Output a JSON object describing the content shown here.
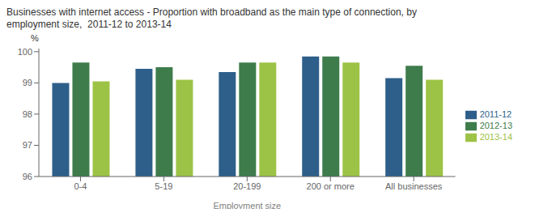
{
  "chart_data": {
    "type": "bar",
    "title": "Businesses with internet access - Proportion with broadband as the main type of connection, by",
    "subtitle": "employment size,  2011-12 to 2013-14",
    "xlabel": "Employment size",
    "ylabel": "%",
    "categories": [
      "0-4",
      "5-19",
      "20-199",
      "200 or more",
      "All businesses"
    ],
    "series": [
      {
        "name": "2011-12",
        "color": "#2E5F8A",
        "values": [
          99.0,
          99.45,
          99.35,
          99.85,
          99.15
        ]
      },
      {
        "name": "2012-13",
        "color": "#3E7C4C",
        "values": [
          99.65,
          99.5,
          99.65,
          99.85,
          99.55
        ]
      },
      {
        "name": "2013-14",
        "color": "#9DC346",
        "values": [
          99.05,
          99.1,
          99.65,
          99.65,
          99.1
        ]
      }
    ],
    "ylim": [
      96,
      100.1
    ],
    "yticks": [
      96,
      97,
      98,
      99,
      100
    ],
    "grid": false,
    "legend": "right"
  }
}
